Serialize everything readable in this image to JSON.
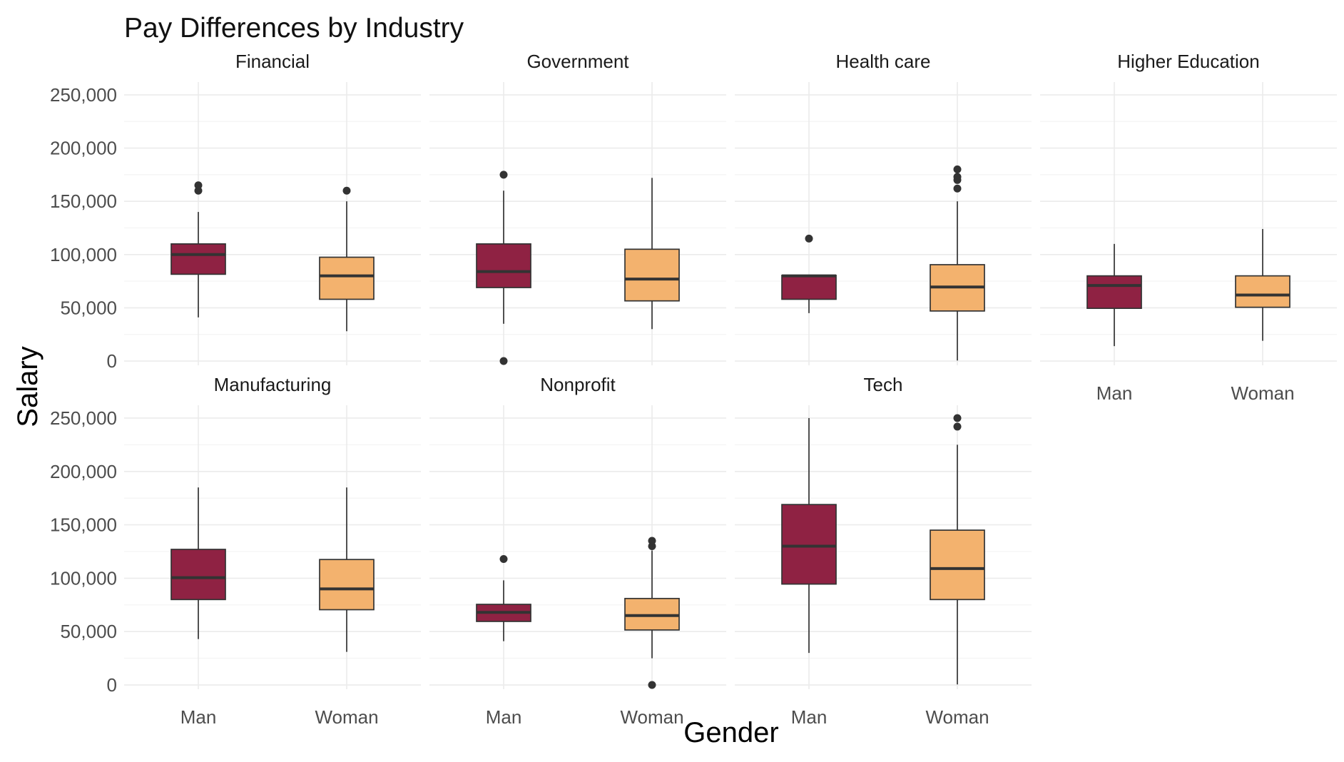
{
  "chart_data": {
    "type": "boxplot",
    "title": "Pay Differences by Industry",
    "xlabel": "Gender",
    "ylabel": "Salary",
    "categories": [
      "Man",
      "Woman"
    ],
    "y_ticks": [
      0,
      50000,
      100000,
      150000,
      200000,
      250000
    ],
    "y_tick_labels": [
      "0",
      "50,000",
      "100,000",
      "150,000",
      "200,000",
      "250,000"
    ],
    "ylim": [
      -4000,
      262000
    ],
    "colors": {
      "Man": "#8f2243",
      "Woman": "#f3b26e"
    },
    "grid": true,
    "panels": [
      {
        "name": "Financial",
        "boxes": [
          {
            "group": "Man",
            "lower": 41000,
            "q1": 81500,
            "median": 100000,
            "q3": 110000,
            "upper": 140000,
            "outliers": [
              160000,
              165000
            ]
          },
          {
            "group": "Woman",
            "lower": 28000,
            "q1": 58000,
            "median": 80000,
            "q3": 97500,
            "upper": 150000,
            "outliers": [
              160000
            ]
          }
        ]
      },
      {
        "name": "Government",
        "boxes": [
          {
            "group": "Man",
            "lower": 35000,
            "q1": 69000,
            "median": 84000,
            "q3": 110000,
            "upper": 160000,
            "outliers": [
              175000,
              0
            ]
          },
          {
            "group": "Woman",
            "lower": 30000,
            "q1": 56500,
            "median": 77000,
            "q3": 105000,
            "upper": 172000,
            "outliers": []
          }
        ]
      },
      {
        "name": "Health care",
        "boxes": [
          {
            "group": "Man",
            "lower": 45000,
            "q1": 58000,
            "median": 80000,
            "q3": 80500,
            "upper": 80500,
            "outliers": [
              115000
            ]
          },
          {
            "group": "Woman",
            "lower": 500,
            "q1": 47000,
            "median": 69500,
            "q3": 90500,
            "upper": 150000,
            "outliers": [
              162000,
              170000,
              173000,
              180000
            ]
          }
        ]
      },
      {
        "name": "Higher Education",
        "boxes": [
          {
            "group": "Man",
            "lower": 14000,
            "q1": 49500,
            "median": 71000,
            "q3": 80000,
            "upper": 110000,
            "outliers": []
          },
          {
            "group": "Woman",
            "lower": 19000,
            "q1": 50500,
            "median": 62000,
            "q3": 80000,
            "upper": 124000,
            "outliers": []
          }
        ]
      },
      {
        "name": "Manufacturing",
        "boxes": [
          {
            "group": "Man",
            "lower": 43000,
            "q1": 80000,
            "median": 100500,
            "q3": 127000,
            "upper": 185000,
            "outliers": []
          },
          {
            "group": "Woman",
            "lower": 31000,
            "q1": 70500,
            "median": 90000,
            "q3": 117500,
            "upper": 185000,
            "outliers": []
          }
        ]
      },
      {
        "name": "Nonprofit",
        "boxes": [
          {
            "group": "Man",
            "lower": 41000,
            "q1": 59500,
            "median": 68000,
            "q3": 75500,
            "upper": 98000,
            "outliers": [
              118000
            ]
          },
          {
            "group": "Woman",
            "lower": 25000,
            "q1": 51500,
            "median": 65000,
            "q3": 81000,
            "upper": 126000,
            "outliers": [
              130000,
              135000,
              0
            ]
          }
        ]
      },
      {
        "name": "Tech",
        "boxes": [
          {
            "group": "Man",
            "lower": 30000,
            "q1": 94500,
            "median": 130000,
            "q3": 169000,
            "upper": 250000,
            "outliers": []
          },
          {
            "group": "Woman",
            "lower": 500,
            "q1": 80000,
            "median": 109000,
            "q3": 145000,
            "upper": 225000,
            "outliers": [
              242000,
              250000
            ]
          }
        ]
      }
    ]
  }
}
